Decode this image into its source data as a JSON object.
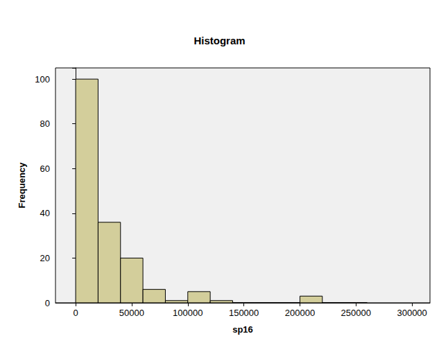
{
  "chart_data": {
    "type": "histogram",
    "title": "Histogram",
    "x_label": "sp16",
    "y_label": "Frequency",
    "bins": [
      0,
      20000,
      40000,
      60000,
      80000,
      100000,
      120000,
      140000,
      160000,
      180000,
      200000,
      220000,
      240000,
      260000
    ],
    "values": [
      100,
      36,
      20,
      6,
      1,
      5,
      1,
      0,
      0,
      0,
      3,
      0,
      0
    ],
    "color": "#d3ce9b",
    "xlim": [
      -18000,
      316000
    ],
    "xticks": [
      0,
      50000,
      100000,
      150000,
      200000,
      250000,
      300000
    ],
    "ylim": [
      0,
      105
    ],
    "yticks": [
      0,
      20,
      40,
      60,
      80,
      100
    ],
    "grid": false
  }
}
